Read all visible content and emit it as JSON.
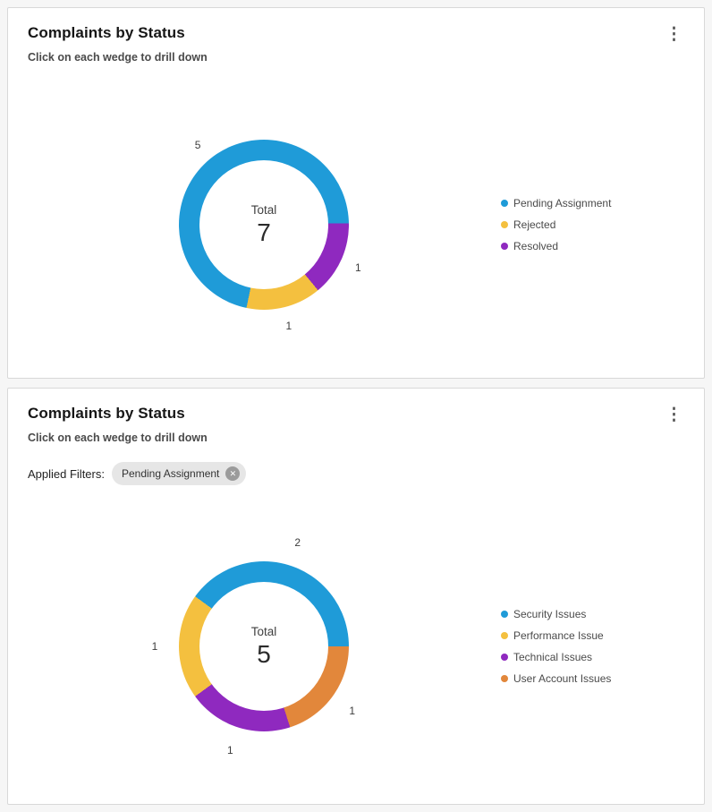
{
  "cards": [
    {
      "subtitle": "Click on each wedge to drill down",
      "menu_icon": "kebab-menu-icon"
    },
    {
      "subtitle": "Click on each wedge to drill down",
      "menu_icon": "kebab-menu-icon",
      "applied_filters_label": "Applied Filters:",
      "filter_chip": {
        "label": "Pending Assignment",
        "close_icon": "x-circle-icon"
      }
    }
  ],
  "chart_data": [
    {
      "type": "pie",
      "donut": true,
      "title": "Complaints by Status",
      "categories": [
        "Pending Assignment",
        "Rejected",
        "Resolved"
      ],
      "values": [
        5,
        1,
        1
      ],
      "colors": [
        "#1f9bd8",
        "#f4c03f",
        "#8f29bf"
      ],
      "center_label": "Total",
      "center_value": 7,
      "legend_position": "right",
      "start_angle": 89,
      "direction": "counterclockwise",
      "callout_radius": 116
    },
    {
      "type": "pie",
      "donut": true,
      "title": "Complaints by Status",
      "categories": [
        "Security Issues",
        "Performance Issue",
        "Technical Issues",
        "User Account Issues"
      ],
      "values": [
        2,
        1,
        1,
        1
      ],
      "colors": [
        "#1f9bd8",
        "#f4c03f",
        "#8f29bf",
        "#e2873b"
      ],
      "center_label": "Total",
      "center_value": 5,
      "legend_position": "right",
      "start_angle": 90,
      "direction": "counterclockwise",
      "callout_radius": 122
    }
  ]
}
